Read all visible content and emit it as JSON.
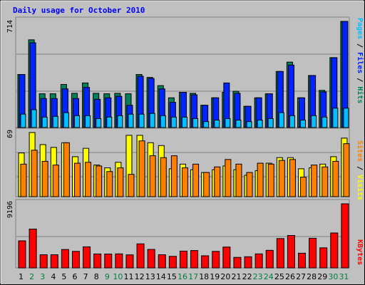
{
  "title": "Daily usage for October 2010",
  "colors": {
    "background": "#c0c0c0",
    "hits": "#00805c",
    "files": "#0024ff",
    "pages": "#00c0ff",
    "visits": "#ffff00",
    "sites": "#ff8000",
    "kbytes": "#ff0000",
    "title": "#0000ff",
    "weekend_label": "#008040",
    "weekday_label": "#000000"
  },
  "chart_data": [
    {
      "type": "bar",
      "panel": "hits-files-pages",
      "ymax_label": "714",
      "ymax": 714,
      "right_label_parts": [
        "Pages",
        " / ",
        "Files",
        " / ",
        "Hits"
      ],
      "categories": [
        "1",
        "2",
        "3",
        "4",
        "5",
        "6",
        "7",
        "8",
        "9",
        "10",
        "11",
        "12",
        "13",
        "14",
        "15",
        "16",
        "17",
        "18",
        "19",
        "20",
        "21",
        "22",
        "23",
        "24",
        "25",
        "26",
        "27",
        "28",
        "29",
        "30",
        "31"
      ],
      "weekend_days": [
        2,
        3,
        9,
        10,
        16,
        17,
        23,
        24,
        30,
        31
      ],
      "series": [
        {
          "name": "Hits",
          "values": [
            357,
            590,
            227,
            227,
            290,
            230,
            300,
            230,
            227,
            230,
            227,
            357,
            337,
            282,
            200,
            237,
            230,
            150,
            200,
            237,
            244,
            143,
            200,
            227,
            377,
            440,
            200,
            350,
            250,
            470,
            714
          ]
        },
        {
          "name": "Files",
          "values": [
            357,
            570,
            195,
            195,
            260,
            195,
            270,
            190,
            200,
            210,
            150,
            345,
            330,
            260,
            170,
            237,
            220,
            150,
            200,
            300,
            230,
            143,
            200,
            227,
            377,
            420,
            200,
            350,
            240,
            470,
            714
          ]
        },
        {
          "name": "Pages",
          "values": [
            90,
            120,
            70,
            75,
            100,
            80,
            80,
            60,
            70,
            80,
            90,
            90,
            95,
            80,
            70,
            70,
            60,
            40,
            50,
            60,
            50,
            40,
            50,
            60,
            100,
            80,
            50,
            80,
            70,
            130,
            130
          ]
        }
      ]
    },
    {
      "type": "bar",
      "panel": "visits-sites",
      "ymax_label": "69",
      "ymax": 69,
      "right_label_parts": [
        "Sites",
        " / ",
        "Visits"
      ],
      "categories": [
        "1",
        "2",
        "3",
        "4",
        "5",
        "6",
        "7",
        "8",
        "9",
        "10",
        "11",
        "12",
        "13",
        "14",
        "15",
        "16",
        "17",
        "18",
        "19",
        "20",
        "21",
        "22",
        "23",
        "24",
        "25",
        "26",
        "27",
        "28",
        "29",
        "30",
        "31"
      ],
      "series": [
        {
          "name": "Visits",
          "values": [
            47,
            69,
            56,
            53,
            58,
            43,
            52,
            34,
            31,
            37,
            66,
            66,
            58,
            55,
            30,
            35,
            29,
            26,
            29,
            33,
            29,
            23,
            28,
            36,
            42,
            42,
            30,
            31,
            35,
            43,
            63
          ]
        },
        {
          "name": "Sites",
          "values": [
            35,
            50,
            38,
            34,
            58,
            36,
            37,
            33,
            27,
            31,
            24,
            60,
            44,
            42,
            44,
            31,
            35,
            26,
            32,
            40,
            35,
            26,
            36,
            35,
            39,
            40,
            21,
            34,
            32,
            38,
            57
          ]
        }
      ]
    },
    {
      "type": "bar",
      "panel": "kbytes",
      "ymax_label": "9196",
      "ymax": 9196,
      "right_label_parts": [
        "KBytes"
      ],
      "categories": [
        "1",
        "2",
        "3",
        "4",
        "5",
        "6",
        "7",
        "8",
        "9",
        "10",
        "11",
        "12",
        "13",
        "14",
        "15",
        "16",
        "17",
        "18",
        "19",
        "20",
        "21",
        "22",
        "23",
        "24",
        "25",
        "26",
        "27",
        "28",
        "29",
        "30",
        "31"
      ],
      "series": [
        {
          "name": "KBytes",
          "values": [
            3880,
            5570,
            1890,
            1890,
            2640,
            2370,
            3020,
            2000,
            1990,
            2010,
            1870,
            3450,
            2650,
            1890,
            1660,
            2410,
            2490,
            1740,
            2370,
            2990,
            1510,
            1600,
            2010,
            2520,
            4210,
            4650,
            2110,
            4250,
            2880,
            5010,
            9196
          ]
        }
      ]
    }
  ]
}
